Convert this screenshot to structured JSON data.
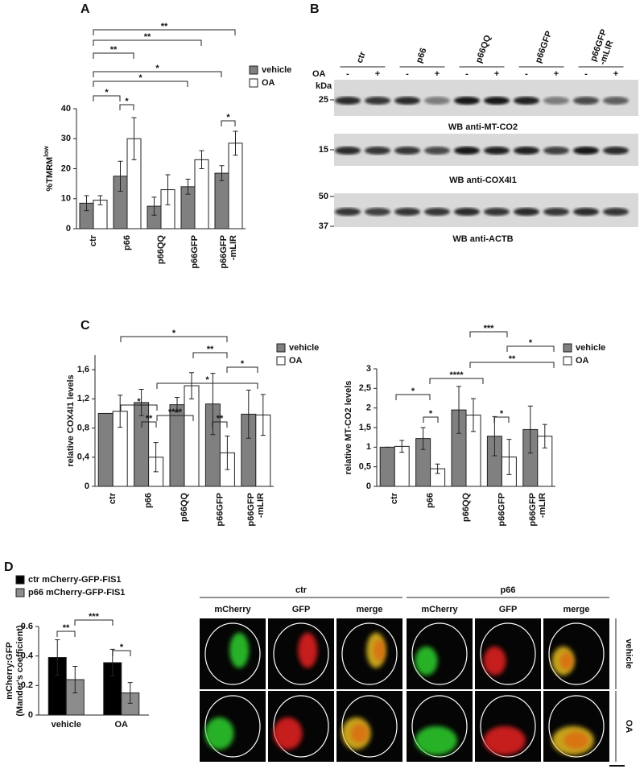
{
  "panels": {
    "a": "A",
    "b": "B",
    "c": "C",
    "d": "D"
  },
  "chart_data": [
    {
      "type": "bar",
      "ylabel": "%TMRM",
      "ylabel_sup": "low",
      "categories": [
        "ctr",
        "p66",
        "p66QQ",
        "p66GFP",
        "p66GFP -mLIR"
      ],
      "series": [
        {
          "name": "vehicle",
          "color": "#808080",
          "values": [
            8.5,
            17.5,
            7.5,
            14,
            18.5
          ],
          "errors": [
            2.5,
            5,
            3,
            2.5,
            2.5
          ]
        },
        {
          "name": "OA",
          "color": "#ffffff",
          "values": [
            9.5,
            30,
            13,
            23,
            28.5
          ],
          "errors": [
            1.5,
            7,
            5,
            3,
            4
          ]
        }
      ],
      "ylim": [
        0,
        40
      ],
      "yticks": [
        0,
        10,
        20,
        30,
        40
      ],
      "annotations": [
        "**",
        "**",
        "**",
        "*",
        "*",
        "*",
        "*",
        "*"
      ]
    },
    {
      "type": "bar",
      "ylabel": "relative COX4I1 levels",
      "categories": [
        "ctr",
        "p66",
        "p66QQ",
        "p66GFP",
        "p66GFP -mLIR"
      ],
      "series": [
        {
          "name": "vehicle",
          "color": "#808080",
          "values": [
            1.0,
            1.15,
            1.12,
            1.13,
            0.99
          ],
          "errors": [
            0,
            0.18,
            0.1,
            0.42,
            0.33
          ]
        },
        {
          "name": "OA",
          "color": "#ffffff",
          "values": [
            1.03,
            0.4,
            1.38,
            0.46,
            0.98
          ],
          "errors": [
            0.22,
            0.2,
            0.18,
            0.23,
            0.28
          ]
        }
      ],
      "ylim": [
        0,
        1.8
      ],
      "yticks": [
        0,
        {
          "value": 0.4,
          "label": "0,4"
        },
        {
          "value": 0.8,
          "label": "0,8"
        },
        {
          "value": 1.2,
          "label": "1,2"
        },
        {
          "value": 1.6,
          "label": "1,6"
        }
      ],
      "annotations": [
        "*",
        "**",
        "*",
        "*",
        "*",
        "****",
        "**",
        "**"
      ]
    },
    {
      "type": "bar",
      "ylabel": "relative MT-CO2 levels",
      "categories": [
        "ctr",
        "p66",
        "p66QQ",
        "p66GFP",
        "p66GFP -mLIR"
      ],
      "series": [
        {
          "name": "vehicle",
          "color": "#808080",
          "values": [
            1.0,
            1.22,
            1.95,
            1.28,
            1.45
          ],
          "errors": [
            0,
            0.28,
            0.6,
            0.5,
            0.6
          ]
        },
        {
          "name": "OA",
          "color": "#ffffff",
          "values": [
            1.02,
            0.45,
            1.82,
            0.75,
            1.28
          ],
          "errors": [
            0.15,
            0.12,
            0.42,
            0.45,
            0.3
          ]
        }
      ],
      "ylim": [
        0,
        3
      ],
      "yticks": [
        0,
        {
          "value": 0.5,
          "label": "0,5"
        },
        1,
        {
          "value": 1.5,
          "label": "1,5"
        },
        2,
        {
          "value": 2.5,
          "label": "2,5"
        },
        3
      ],
      "annotations": [
        "***",
        "*",
        "**",
        "****",
        "*",
        "*",
        "*"
      ]
    },
    {
      "type": "bar",
      "ylabel": "mCherry:GFP",
      "ylabel_line2": "(Mander's coefficient)",
      "categories": [
        "vehicle",
        "OA"
      ],
      "series": [
        {
          "name": "ctr mCherry-GFP-FIS1",
          "color": "#000000",
          "values": [
            0.39,
            0.355
          ],
          "errors": [
            0.12,
            0.09
          ]
        },
        {
          "name": "p66 mCherry-GFP-FIS1",
          "color": "#8c8c8c",
          "values": [
            0.24,
            0.15
          ],
          "errors": [
            0.09,
            0.07
          ]
        }
      ],
      "ylim": [
        0,
        0.6
      ],
      "yticks": [
        0,
        0.2,
        0.4,
        0.6
      ],
      "annotations": [
        "**",
        "***",
        "*"
      ]
    }
  ],
  "blot": {
    "lanes": [
      "ctr",
      "p66",
      "p66QQ",
      "p66GFP",
      "p66GFP -mLIR"
    ],
    "treatment_label": "OA",
    "treatments": [
      "-",
      "+",
      "-",
      "+",
      "-",
      "+",
      "-",
      "+",
      "-",
      "+"
    ],
    "kda_label": "kDa",
    "blots": [
      {
        "markers": [
          "25"
        ],
        "label": "WB anti-MT-CO2"
      },
      {
        "markers": [
          "15"
        ],
        "label": "WB anti-COX4I1"
      },
      {
        "markers": [
          "50",
          "37"
        ],
        "label": "WB anti-ACTB"
      }
    ]
  },
  "microscopy": {
    "groups": [
      "ctr",
      "p66"
    ],
    "channels": [
      "mCherry",
      "GFP",
      "merge",
      "mCherry",
      "GFP",
      "merge"
    ],
    "rows": [
      "vehicle",
      "OA"
    ]
  }
}
